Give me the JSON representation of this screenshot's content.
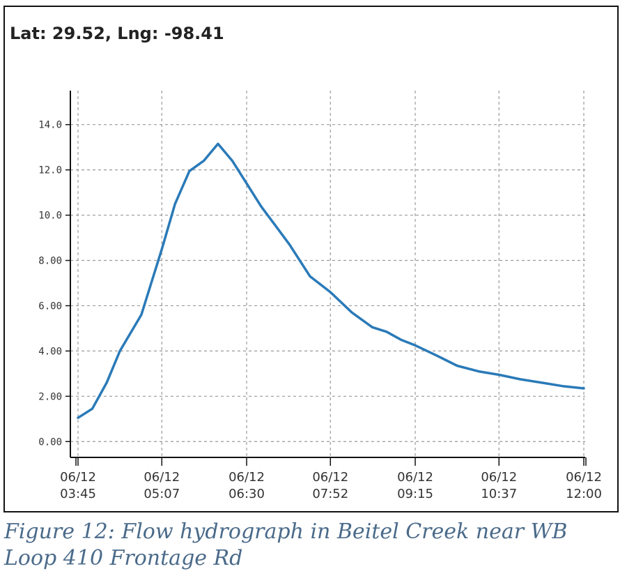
{
  "header": {
    "coords_label": "Lat: 29.52, Lng: -98.41"
  },
  "caption": {
    "text": "Figure 12: Flow hydrograph in Beitel Creek near WB Loop 410 Frontage Rd"
  },
  "colors": {
    "line": "#2a7ab8",
    "grid": "#999999",
    "axis": "#111111"
  },
  "chart_data": {
    "type": "line",
    "title": "",
    "xlabel": "",
    "ylabel": "",
    "ylim": [
      -0.7,
      15.5
    ],
    "xlim": [
      "06/12 03:45",
      "06/12 12:00"
    ],
    "grid": true,
    "y_ticks": [
      {
        "value": 0,
        "label": "0.00"
      },
      {
        "value": 2,
        "label": "2.00"
      },
      {
        "value": 4,
        "label": "4.00"
      },
      {
        "value": 6,
        "label": "6.00"
      },
      {
        "value": 8,
        "label": "8.00"
      },
      {
        "value": 10,
        "label": "10.0"
      },
      {
        "value": 12,
        "label": "12.0"
      },
      {
        "value": 14,
        "label": "14.0"
      }
    ],
    "x_ticks": [
      {
        "time": "03:45",
        "line1": "06/12",
        "line2": "03:45"
      },
      {
        "time": "05:07",
        "line1": "06/12",
        "line2": "05:07"
      },
      {
        "time": "06:30",
        "line1": "06/12",
        "line2": "06:30"
      },
      {
        "time": "07:52",
        "line1": "06/12",
        "line2": "07:52"
      },
      {
        "time": "09:15",
        "line1": "06/12",
        "line2": "09:15"
      },
      {
        "time": "10:37",
        "line1": "06/12",
        "line2": "10:37"
      },
      {
        "time": "12:00",
        "line1": "06/12",
        "line2": "12:00"
      }
    ],
    "series": [
      {
        "x": [
          "03:45",
          "03:59",
          "04:13",
          "04:26",
          "04:47",
          "05:07",
          "05:20",
          "05:34",
          "05:48",
          "06:02",
          "06:16",
          "06:30",
          "06:44",
          "06:58",
          "07:12",
          "07:32",
          "07:52",
          "08:13",
          "08:33",
          "08:47",
          "09:01",
          "09:15",
          "09:36",
          "09:56",
          "10:17",
          "10:37",
          "10:58",
          "11:19",
          "11:39",
          "12:00"
        ],
        "y": [
          1.05,
          1.45,
          2.6,
          4.0,
          5.6,
          8.5,
          10.5,
          11.95,
          12.4,
          13.15,
          12.4,
          11.4,
          10.4,
          9.55,
          8.7,
          7.3,
          6.6,
          5.7,
          5.05,
          4.85,
          4.5,
          4.25,
          3.8,
          3.35,
          3.1,
          2.95,
          2.75,
          2.6,
          2.45,
          2.35
        ]
      }
    ]
  }
}
